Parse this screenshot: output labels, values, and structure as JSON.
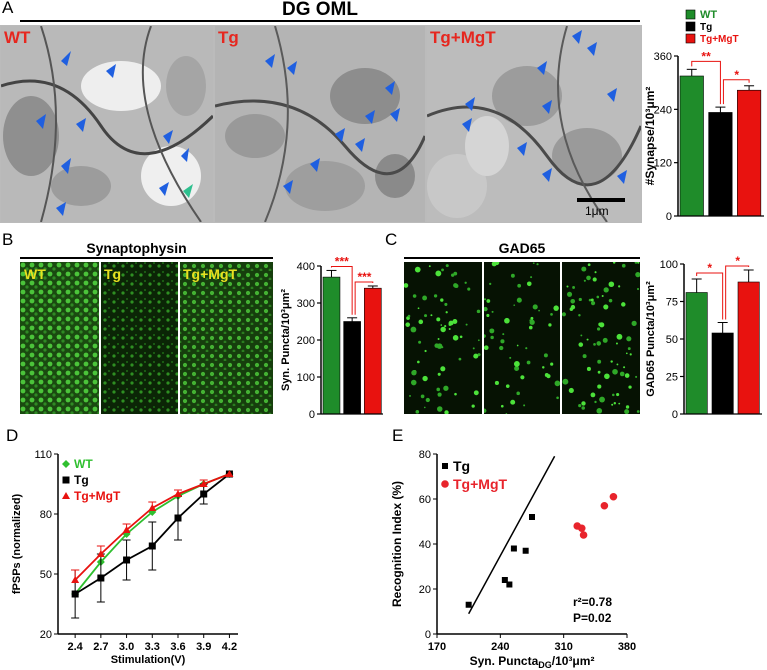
{
  "figure": {
    "panel_letters": [
      "A",
      "B",
      "C",
      "D",
      "E"
    ],
    "panelA": {
      "title": "DG OML",
      "image_labels": [
        "WT",
        "Tg",
        "Tg+MgT"
      ],
      "scale_bar": "1μm"
    },
    "panelB": {
      "title": "Synaptophysin",
      "image_labels": [
        "WT",
        "Tg",
        "Tg+MgT"
      ]
    },
    "panelC": {
      "title": "GAD65"
    }
  },
  "chart_data": [
    {
      "id": "A-bar",
      "type": "bar",
      "categories": [
        "WT",
        "Tg",
        "Tg+MgT"
      ],
      "values": [
        315,
        233,
        283
      ],
      "errors": [
        15,
        12,
        10
      ],
      "colors": [
        "#1f8c2a",
        "#000000",
        "#e8120f"
      ],
      "ylabel": "#Synapse/10³μm²",
      "ylim": [
        0,
        360
      ],
      "yticks": [
        "0",
        "120",
        "240",
        "360"
      ],
      "legend": [
        "WT",
        "Tg",
        "Tg+MgT"
      ],
      "significance": [
        "**",
        "*"
      ]
    },
    {
      "id": "B-bar",
      "type": "bar",
      "categories": [
        "WT",
        "Tg",
        "Tg+MgT"
      ],
      "values": [
        370,
        250,
        340
      ],
      "errors": [
        18,
        10,
        6
      ],
      "colors": [
        "#1f8c2a",
        "#000000",
        "#e8120f"
      ],
      "ylabel": "Syn. Puncta/10³μm²",
      "ylim": [
        0,
        400
      ],
      "yticks": [
        "0",
        "100",
        "200",
        "300",
        "400"
      ],
      "significance": [
        "***",
        "***"
      ]
    },
    {
      "id": "C-bar",
      "type": "bar",
      "categories": [
        "WT",
        "Tg",
        "Tg+MgT"
      ],
      "values": [
        81,
        54,
        88
      ],
      "errors": [
        9,
        7,
        8
      ],
      "colors": [
        "#1f8c2a",
        "#000000",
        "#e8120f"
      ],
      "ylabel": "GAD65 Puncta/10³μm²",
      "ylim": [
        0,
        100
      ],
      "yticks": [
        "0",
        "25",
        "50",
        "75",
        "100"
      ],
      "significance": [
        "*",
        "*"
      ]
    },
    {
      "id": "D-line",
      "type": "line",
      "x": [
        2.4,
        2.7,
        3.0,
        3.3,
        3.6,
        3.9,
        4.2
      ],
      "xticks": [
        "2.4",
        "2.7",
        "3.0",
        "3.3",
        "3.6",
        "3.9",
        "4.2"
      ],
      "xlabel": "Stimulation(V)",
      "ylabel": "fPSPs (normalized)",
      "ylim": [
        20,
        110
      ],
      "yticks": [
        "20",
        "50",
        "80",
        "110"
      ],
      "series": [
        {
          "name": "WT",
          "color": "#2fbf2f",
          "marker": "diamond",
          "values": [
            40,
            56,
            70,
            81,
            89,
            95,
            100
          ]
        },
        {
          "name": "Tg",
          "color": "#000000",
          "marker": "square",
          "values": [
            40,
            48,
            57,
            64,
            78,
            90,
            100
          ],
          "errors": [
            12,
            12,
            10,
            12,
            11,
            5,
            0
          ]
        },
        {
          "name": "Tg+MgT",
          "color": "#e8120f",
          "marker": "triangle",
          "values": [
            47,
            60,
            72,
            83,
            90,
            95,
            100
          ],
          "errors": [
            5,
            4,
            3,
            3,
            2,
            2,
            0
          ]
        }
      ]
    },
    {
      "id": "E-scatter",
      "type": "scatter",
      "xlabel": "Syn. Puncta",
      "xlabel_sub": "DG",
      "xlabel_suffix": "/10³μm²",
      "ylabel": "Recognition Index (%)",
      "xlim": [
        170,
        380
      ],
      "ylim": [
        0,
        80
      ],
      "xticks": [
        "170",
        "240",
        "310",
        "380"
      ],
      "yticks": [
        "0",
        "20",
        "40",
        "60",
        "80"
      ],
      "annotation": [
        "r²=0.78",
        "P=0.02"
      ],
      "series": [
        {
          "name": "Tg",
          "color": "#000000",
          "points": [
            [
              205,
              13
            ],
            [
              245,
              24
            ],
            [
              250,
              22
            ],
            [
              255,
              38
            ],
            [
              268,
              37
            ],
            [
              275,
              52
            ]
          ]
        },
        {
          "name": "Tg+MgT",
          "color": "#e8242c",
          "points": [
            [
              325,
              48
            ],
            [
              330,
              47
            ],
            [
              332,
              44
            ],
            [
              355,
              57
            ],
            [
              365,
              61
            ]
          ]
        }
      ],
      "fit": [
        [
          205,
          9
        ],
        [
          300,
          79
        ]
      ]
    }
  ]
}
